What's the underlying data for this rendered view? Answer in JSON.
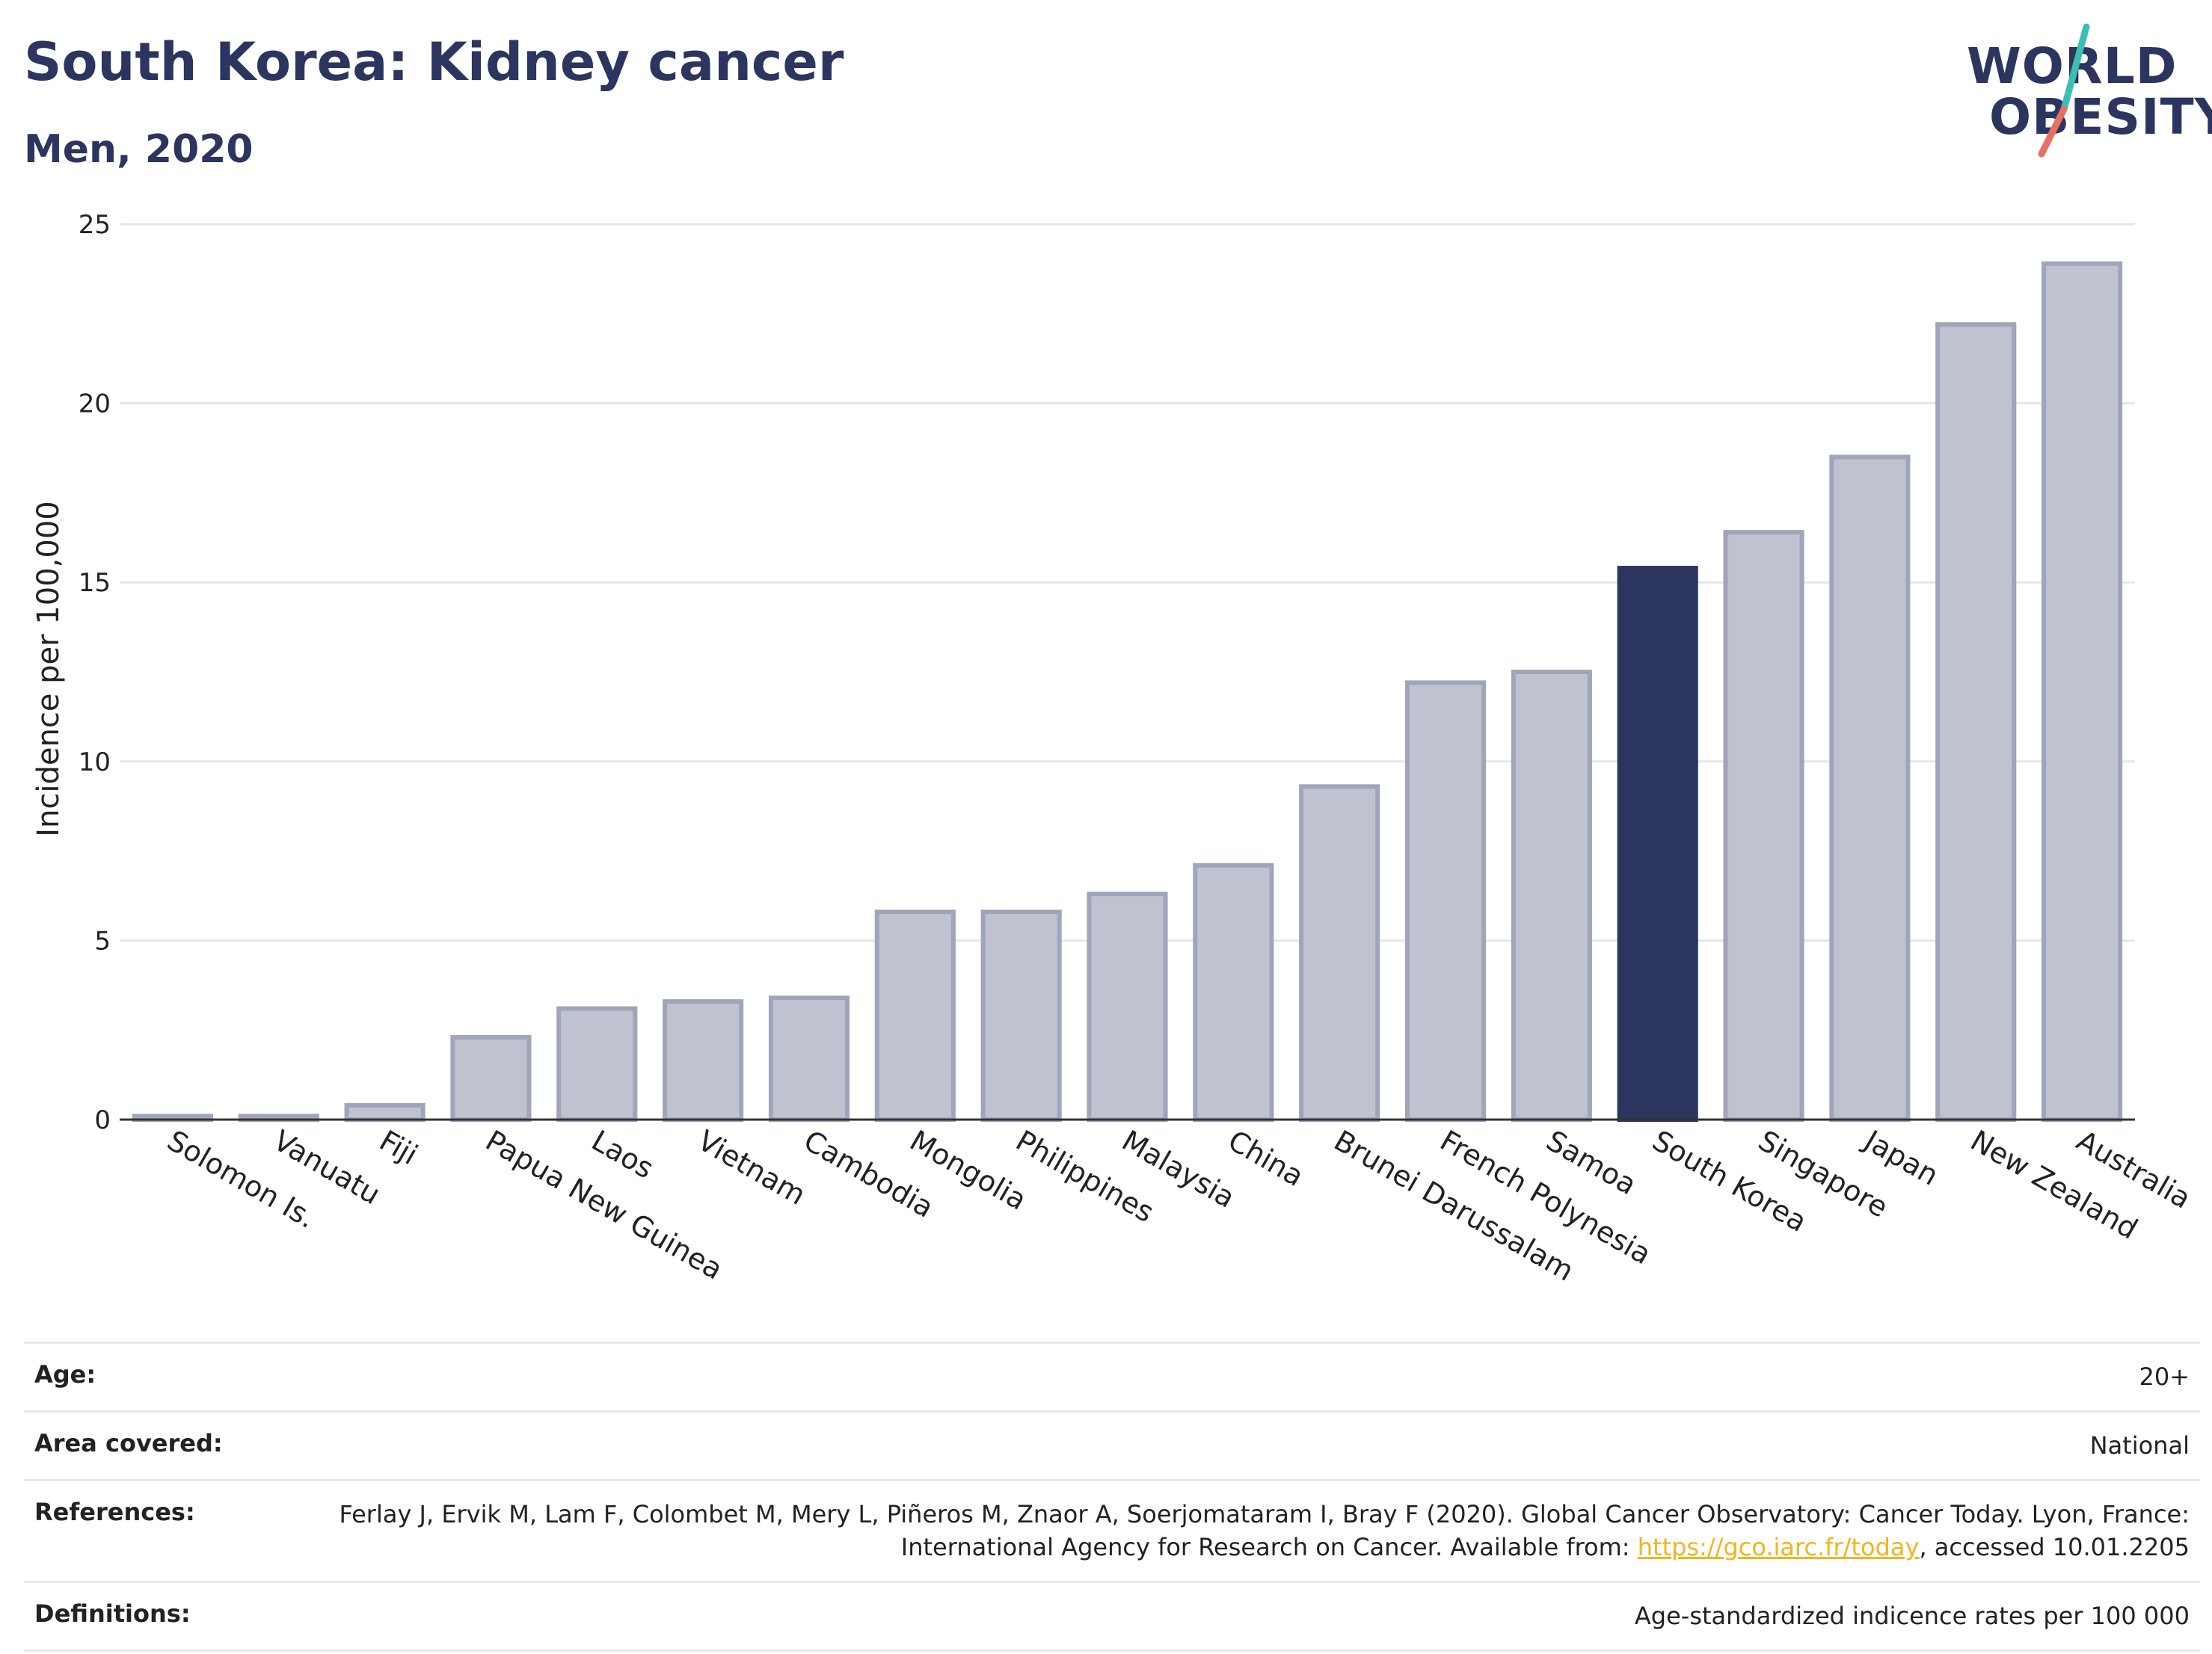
{
  "header": {
    "title": "South Korea: Kidney cancer",
    "subtitle": "Men, 2020"
  },
  "logo": {
    "line1": "WORLD",
    "line2": "OBESITY",
    "accent_teal": "#3bbfb4",
    "accent_coral": "#e8705f",
    "text_color": "#2b355f"
  },
  "chart_data": {
    "type": "bar",
    "ylabel": "Incidence per 100,000",
    "ylim": [
      0,
      25
    ],
    "yticks": [
      0,
      5,
      10,
      15,
      20,
      25
    ],
    "categories": [
      "Solomon Is.",
      "Vanuatu",
      "Fiji",
      "Papua New Guinea",
      "Laos",
      "Vietnam",
      "Cambodia",
      "Mongolia",
      "Philippines",
      "Malaysia",
      "China",
      "Brunei Darussalam",
      "French Polynesia",
      "Samoa",
      "South Korea",
      "Singapore",
      "Japan",
      "New Zealand",
      "Australia"
    ],
    "values": [
      0.1,
      0.1,
      0.4,
      2.3,
      3.1,
      3.3,
      3.4,
      5.8,
      5.8,
      6.3,
      7.1,
      9.3,
      12.2,
      12.5,
      15.4,
      16.4,
      18.5,
      22.2,
      23.9
    ],
    "highlight": "South Korea",
    "colors": {
      "bar_fill": "#bfc3d0",
      "bar_stroke": "#9fa5bb",
      "highlight_fill": "#2b355f",
      "grid": "#e6e7ec",
      "axis": "#333333"
    },
    "grid": true
  },
  "info": {
    "age_label": "Age:",
    "age_value": "20+",
    "area_label": "Area covered:",
    "area_value": "National",
    "references_label": "References:",
    "references_text_1": "Ferlay J, Ervik M, Lam F, Colombet M, Mery L, Piñeros M, Znaor A, Soerjomataram I, Bray F (2020). Global Cancer Observatory: Cancer Today. Lyon, France: International Agency for Research on Cancer. Available from: ",
    "references_link": "https://gco.iarc.fr/today",
    "references_text_2": ", accessed 10.01.2205",
    "definitions_label": "Definitions:",
    "definitions_value": "Age-standardized indicence rates per 100 000"
  }
}
